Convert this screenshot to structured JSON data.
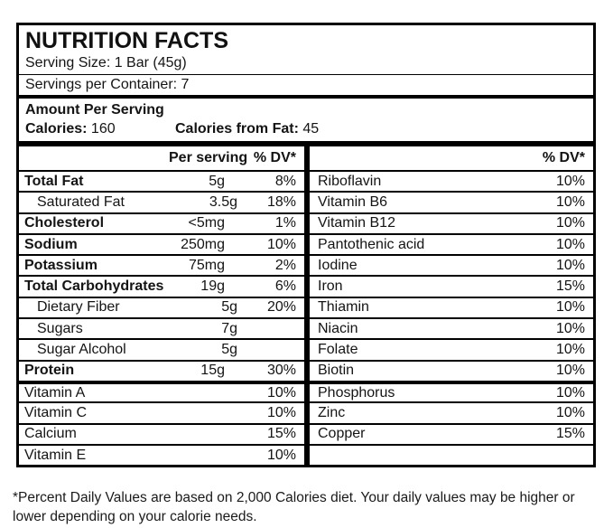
{
  "header": {
    "title": "NUTRITION FACTS",
    "serving_size": "Serving Size: 1 Bar (45g)",
    "servings_per_container": "Servings per Container: 7"
  },
  "amount": {
    "heading": "Amount Per Serving",
    "calories_label": "Calories:",
    "calories_value": "160",
    "fat_label": "Calories from Fat:",
    "fat_value": "45"
  },
  "left_table": {
    "header": {
      "per_serving": "Per serving",
      "dv": "% DV*"
    },
    "rows": [
      {
        "name": "Total Fat",
        "amount": "5g",
        "dv": "8%",
        "bold": true
      },
      {
        "name": "Saturated Fat",
        "amount": "3.5g",
        "dv": "18%",
        "indent": true
      },
      {
        "name": "Cholesterol",
        "amount": "<5mg",
        "dv": "1%",
        "bold": true
      },
      {
        "name": "Sodium",
        "amount": "250mg",
        "dv": "10%",
        "bold": true
      },
      {
        "name": "Potassium",
        "amount": "75mg",
        "dv": "2%",
        "bold": true
      },
      {
        "name": "Total Carbohydrates",
        "amount": "19g",
        "dv": "6%",
        "bold": true
      },
      {
        "name": "Dietary Fiber",
        "amount": "5g",
        "dv": "20%",
        "indent": true
      },
      {
        "name": "Sugars",
        "amount": "7g",
        "dv": "",
        "indent": true
      },
      {
        "name": "Sugar Alcohol",
        "amount": "5g",
        "dv": "",
        "indent": true
      },
      {
        "name": "Protein",
        "amount": "15g",
        "dv": "30%",
        "bold": true
      },
      {
        "name": "Vitamin A",
        "amount": "",
        "dv": "10%",
        "group_start": true
      },
      {
        "name": "Vitamin C",
        "amount": "",
        "dv": "10%"
      },
      {
        "name": "Calcium",
        "amount": "",
        "dv": "15%"
      },
      {
        "name": "Vitamin E",
        "amount": "",
        "dv": "10%"
      }
    ]
  },
  "right_table": {
    "header": {
      "dv": "% DV*"
    },
    "rows": [
      {
        "name": "Riboflavin",
        "dv": "10%"
      },
      {
        "name": "Vitamin B6",
        "dv": "10%"
      },
      {
        "name": "Vitamin B12",
        "dv": "10%"
      },
      {
        "name": "Pantothenic acid",
        "dv": "10%"
      },
      {
        "name": "Iodine",
        "dv": "10%"
      },
      {
        "name": "Iron",
        "dv": "15%"
      },
      {
        "name": "Thiamin",
        "dv": "10%"
      },
      {
        "name": "Niacin",
        "dv": "10%"
      },
      {
        "name": "Folate",
        "dv": "10%"
      },
      {
        "name": "Biotin",
        "dv": "10%"
      },
      {
        "name": "Phosphorus",
        "dv": "10%",
        "group_start": true
      },
      {
        "name": "Zinc",
        "dv": "10%"
      },
      {
        "name": "Copper",
        "dv": "15%"
      }
    ],
    "has_trailing_empty_row": true
  },
  "footnote": {
    "text": "*Percent Daily Values are based on 2,000 Calories diet. Your daily values may be higher or lower depending on your calorie needs."
  }
}
